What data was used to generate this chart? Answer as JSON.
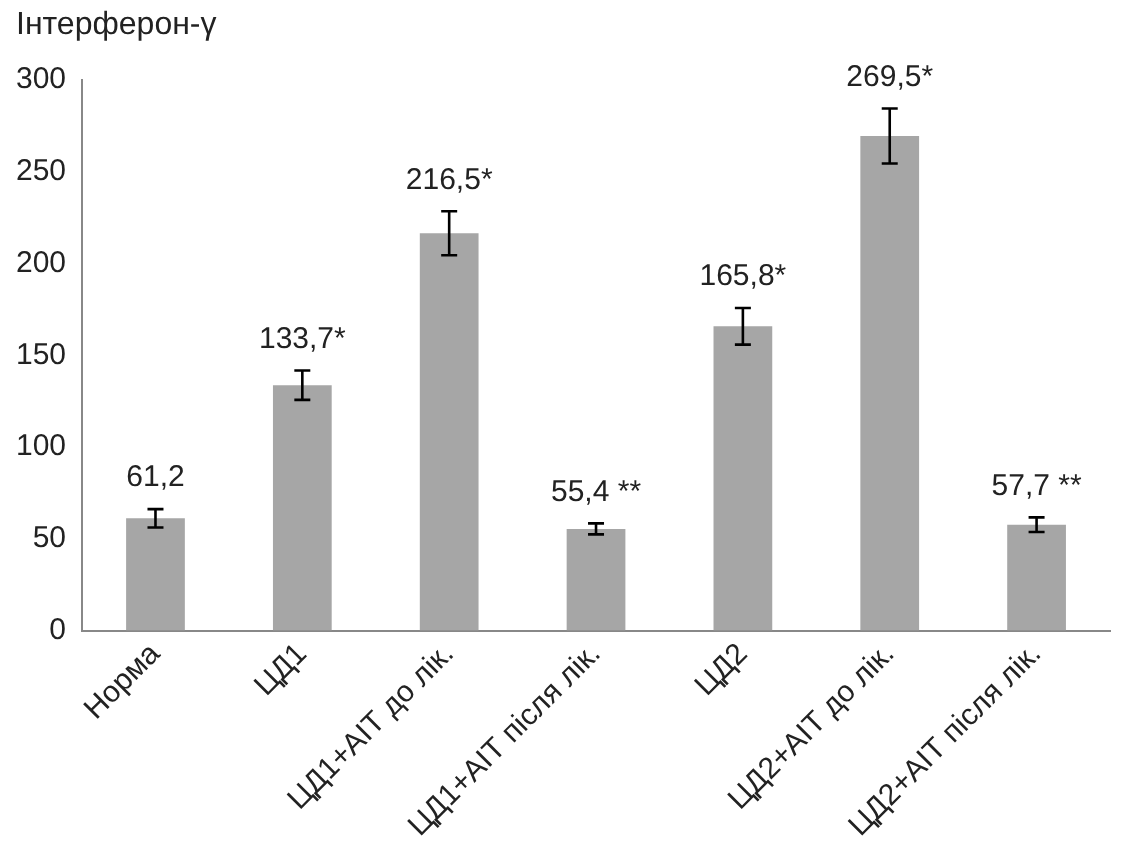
{
  "chart_data": {
    "type": "bar",
    "title": "Інтерферон-γ",
    "categories": [
      "Норма",
      "ЦД1",
      "ЦД1+АІТ до лік.",
      "ЦД1+АІТ після лік.",
      "ЦД2",
      "ЦД2+АІТ до лік.",
      "ЦД2+АІТ після лік."
    ],
    "values": [
      61.2,
      133.7,
      216.5,
      55.4,
      165.8,
      269.5,
      57.7
    ],
    "errors": [
      5,
      8,
      12,
      3,
      10,
      15,
      4
    ],
    "value_labels": [
      "61,2",
      "133,7*",
      "216,5*",
      "55,4 **",
      "165,8*",
      "269,5*",
      "57,7 **"
    ],
    "color": "#a6a6a6",
    "ylim": [
      0,
      300
    ],
    "yticks": [
      0,
      50,
      100,
      150,
      200,
      250,
      300
    ],
    "grid": false,
    "legend": false
  }
}
